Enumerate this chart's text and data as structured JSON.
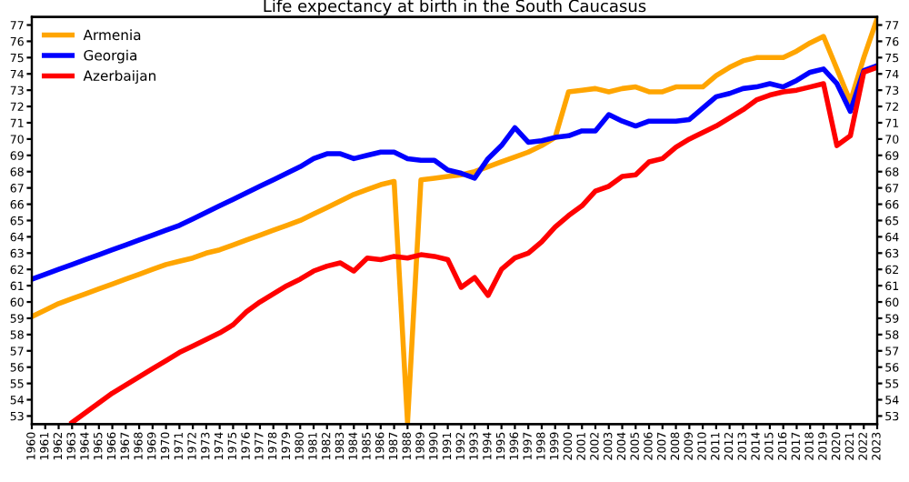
{
  "chart_data": {
    "type": "line",
    "title": "Life expectancy at birth in the South Caucasus",
    "x": [
      1960,
      1961,
      1962,
      1963,
      1964,
      1965,
      1966,
      1967,
      1968,
      1969,
      1970,
      1971,
      1972,
      1973,
      1974,
      1975,
      1976,
      1977,
      1978,
      1979,
      1980,
      1981,
      1982,
      1983,
      1984,
      1985,
      1986,
      1987,
      1988,
      1989,
      1990,
      1991,
      1992,
      1993,
      1994,
      1995,
      1996,
      1997,
      1998,
      1999,
      2000,
      2001,
      2002,
      2003,
      2004,
      2005,
      2006,
      2007,
      2008,
      2009,
      2010,
      2011,
      2012,
      2013,
      2014,
      2015,
      2016,
      2017,
      2018,
      2019,
      2020,
      2021,
      2022,
      2023
    ],
    "series": [
      {
        "name": "Armenia",
        "color": "#ffa500",
        "values": [
          59.1,
          59.5,
          59.9,
          60.2,
          60.5,
          60.8,
          61.1,
          61.4,
          61.7,
          62.0,
          62.3,
          62.5,
          62.7,
          63.0,
          63.2,
          63.5,
          63.8,
          64.1,
          64.4,
          64.7,
          65.0,
          65.4,
          65.8,
          66.2,
          66.6,
          66.9,
          67.2,
          67.4,
          52.6,
          67.5,
          67.6,
          67.7,
          67.8,
          68.0,
          68.3,
          68.6,
          68.9,
          69.2,
          69.6,
          70.1,
          72.9,
          73.0,
          73.1,
          72.9,
          73.1,
          73.2,
          72.9,
          72.9,
          73.2,
          73.2,
          73.2,
          73.9,
          74.4,
          74.8,
          75.0,
          75.0,
          75.0,
          75.4,
          75.9,
          76.3,
          74.3,
          72.3,
          75.0,
          77.4
        ]
      },
      {
        "name": "Georgia",
        "color": "#0000ff",
        "values": [
          61.4,
          61.7,
          62.0,
          62.3,
          62.6,
          62.9,
          63.2,
          63.5,
          63.8,
          64.1,
          64.4,
          64.7,
          65.1,
          65.5,
          65.9,
          66.3,
          66.7,
          67.1,
          67.5,
          67.9,
          68.3,
          68.8,
          69.1,
          69.1,
          68.8,
          69.0,
          69.2,
          69.2,
          68.8,
          68.7,
          68.7,
          68.1,
          67.9,
          67.6,
          68.8,
          69.6,
          70.7,
          69.8,
          69.9,
          70.1,
          70.2,
          70.5,
          70.5,
          71.5,
          71.1,
          70.8,
          71.1,
          71.1,
          71.1,
          71.2,
          71.9,
          72.6,
          72.8,
          73.1,
          73.2,
          73.4,
          73.2,
          73.6,
          74.1,
          74.3,
          73.4,
          71.7,
          74.2,
          74.5
        ]
      },
      {
        "name": "Azerbaijan",
        "color": "#ff0000",
        "values": [
          null,
          null,
          null,
          52.6,
          53.2,
          53.8,
          54.4,
          54.9,
          55.4,
          55.9,
          56.4,
          56.9,
          57.3,
          57.7,
          58.1,
          58.6,
          59.4,
          60.0,
          60.5,
          61.0,
          61.4,
          61.9,
          62.2,
          62.4,
          61.9,
          62.7,
          62.6,
          62.8,
          62.7,
          62.9,
          62.8,
          62.6,
          60.9,
          61.5,
          60.4,
          62.0,
          62.7,
          63.0,
          63.7,
          64.6,
          65.3,
          65.9,
          66.8,
          67.1,
          67.7,
          67.8,
          68.6,
          68.8,
          69.5,
          70.0,
          70.4,
          70.8,
          71.3,
          71.8,
          72.4,
          72.7,
          72.9,
          73.0,
          73.2,
          73.4,
          69.6,
          70.2,
          74.1,
          74.4
        ]
      }
    ],
    "xlim": [
      1960,
      2023
    ],
    "xticks": [
      1960,
      1961,
      1962,
      1963,
      1964,
      1965,
      1966,
      1967,
      1968,
      1969,
      1970,
      1971,
      1972,
      1973,
      1974,
      1975,
      1976,
      1977,
      1978,
      1979,
      1980,
      1981,
      1982,
      1983,
      1984,
      1985,
      1986,
      1987,
      1988,
      1989,
      1990,
      1991,
      1992,
      1993,
      1994,
      1995,
      1996,
      1997,
      1998,
      1999,
      2000,
      2001,
      2002,
      2003,
      2004,
      2005,
      2006,
      2007,
      2008,
      2009,
      2010,
      2011,
      2012,
      2013,
      2014,
      2015,
      2016,
      2017,
      2018,
      2019,
      2020,
      2021,
      2022,
      2023
    ],
    "ylim": [
      52.5,
      77.5
    ],
    "yticks": [
      53,
      54,
      55,
      56,
      57,
      58,
      59,
      60,
      61,
      62,
      63,
      64,
      65,
      66,
      67,
      68,
      69,
      70,
      71,
      72,
      73,
      74,
      75,
      76,
      77
    ],
    "y2lim": [
      52.5,
      77.5
    ],
    "y2ticks": [
      53,
      54,
      55,
      56,
      57,
      58,
      59,
      60,
      61,
      62,
      63,
      64,
      65,
      66,
      67,
      68,
      69,
      70,
      71,
      72,
      73,
      74,
      75,
      76,
      77
    ],
    "legend": "top left"
  }
}
